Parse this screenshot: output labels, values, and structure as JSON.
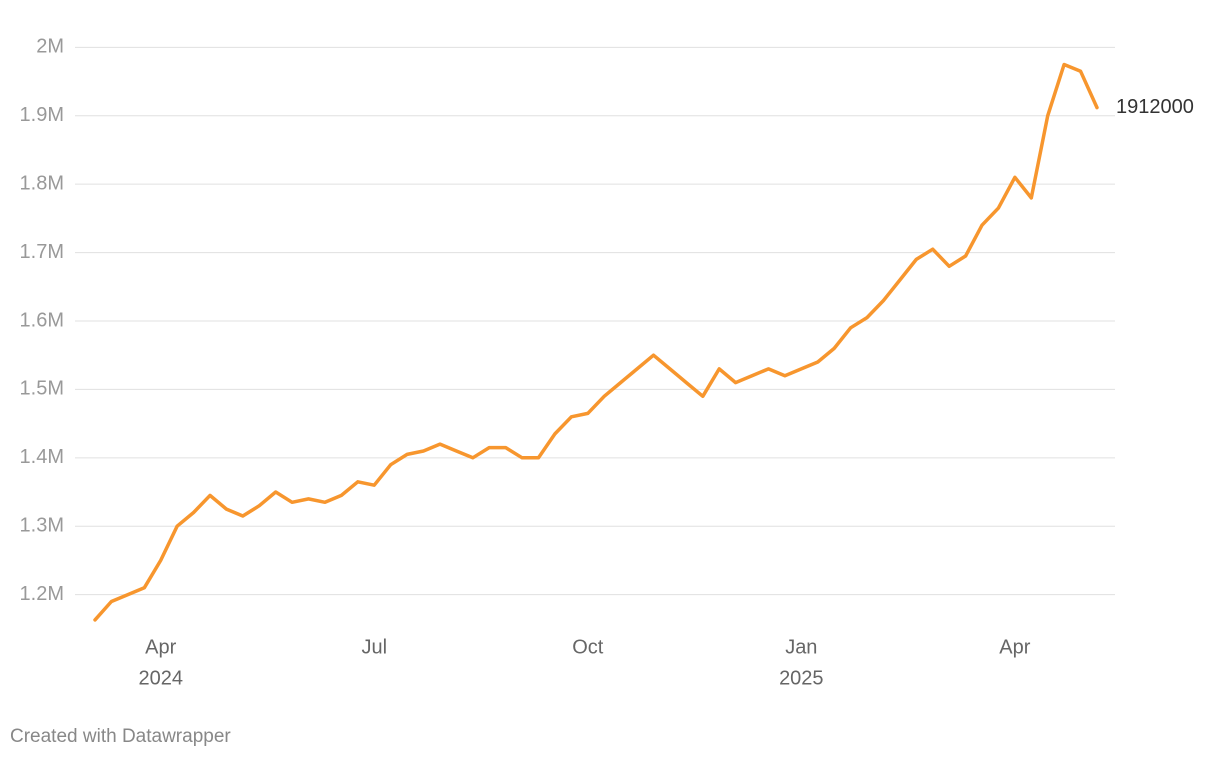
{
  "chart_data": {
    "type": "line",
    "categories": [
      null,
      null,
      null,
      null,
      "Apr",
      null,
      null,
      null,
      null,
      null,
      null,
      null,
      null,
      null,
      null,
      null,
      null,
      "Jul",
      null,
      null,
      null,
      null,
      null,
      null,
      null,
      null,
      null,
      null,
      null,
      null,
      "Oct",
      null,
      null,
      null,
      null,
      null,
      null,
      null,
      null,
      null,
      null,
      null,
      null,
      "Jan",
      null,
      null,
      null,
      null,
      null,
      null,
      null,
      null,
      null,
      null,
      null,
      null,
      "Apr",
      null,
      null,
      null,
      null,
      null
    ],
    "category_years": [
      null,
      null,
      null,
      null,
      "2024",
      null,
      null,
      null,
      null,
      null,
      null,
      null,
      null,
      null,
      null,
      null,
      null,
      null,
      null,
      null,
      null,
      null,
      null,
      null,
      null,
      null,
      null,
      null,
      null,
      null,
      null,
      null,
      null,
      null,
      null,
      null,
      null,
      null,
      null,
      null,
      null,
      null,
      null,
      "2025",
      null,
      null,
      null,
      null,
      null,
      null,
      null,
      null,
      null,
      null,
      null,
      null,
      null,
      null,
      null,
      null,
      null,
      null
    ],
    "values": [
      1163000,
      1190000,
      1200000,
      1210000,
      1250000,
      1300000,
      1320000,
      1345000,
      1325000,
      1315000,
      1330000,
      1350000,
      1335000,
      1340000,
      1335000,
      1345000,
      1365000,
      1360000,
      1390000,
      1405000,
      1410000,
      1420000,
      1410000,
      1400000,
      1415000,
      1415000,
      1400000,
      1400000,
      1435000,
      1460000,
      1465000,
      1490000,
      1510000,
      1530000,
      1550000,
      1530000,
      1510000,
      1490000,
      1530000,
      1510000,
      1520000,
      1530000,
      1520000,
      1530000,
      1540000,
      1560000,
      1590000,
      1605000,
      1630000,
      1660000,
      1690000,
      1705000,
      1680000,
      1695000,
      1740000,
      1765000,
      1810000,
      1780000,
      1900000,
      1975000,
      1965000,
      1912000
    ],
    "color": "#f7962e",
    "label_last": true,
    "ylim": [
      1160000,
      2040000
    ],
    "yticks": [
      {
        "value": 1200000,
        "label": "1.2M"
      },
      {
        "value": 1300000,
        "label": "1.3M"
      },
      {
        "value": 1400000,
        "label": "1.4M"
      },
      {
        "value": 1500000,
        "label": "1.5M"
      },
      {
        "value": 1600000,
        "label": "1.6M"
      },
      {
        "value": 1700000,
        "label": "1.7M"
      },
      {
        "value": 1800000,
        "label": "1.8M"
      },
      {
        "value": 1900000,
        "label": "1.9M"
      },
      {
        "value": 2000000,
        "label": "2M"
      }
    ],
    "grid": true,
    "credit": "Created with Datawrapper"
  }
}
